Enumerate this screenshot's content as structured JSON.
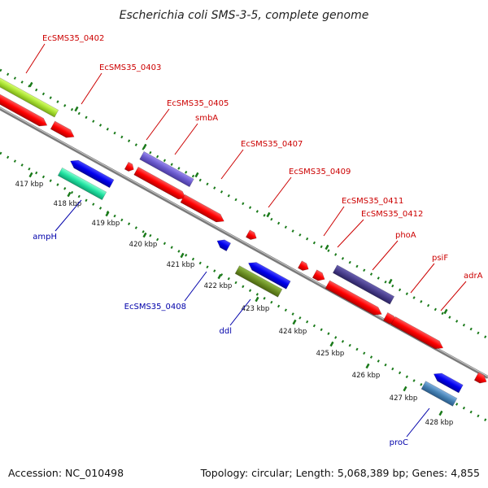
{
  "title": "Escherichia coli SMS-3-5, complete genome",
  "footer": {
    "accession": "Accession: NC_010498",
    "topology": "Topology: circular; Length: 5,068,389 bp; Genes: 4,855"
  },
  "colors": {
    "backbone": "#8a8a8a",
    "tick": "#1a7a1a",
    "label_plus": "#cc0000",
    "label_minus": "#0000aa",
    "cds": "#ff0000",
    "blue_feature": "#1010ee",
    "lime_feature": "#a8e030",
    "purple_feature": "#6a5acd",
    "darkpurple_feature": "#483d8b",
    "olive_feature": "#6b8e23",
    "teal_feature": "#20e0a0",
    "steel_feature": "#4682b4"
  },
  "ticks": [
    "417 kbp",
    "418 kbp",
    "419 kbp",
    "420 kbp",
    "421 kbp",
    "422 kbp",
    "423 kbp",
    "424 kbp",
    "425 kbp",
    "426 kbp",
    "427 kbp",
    "428 kbp"
  ],
  "labels_plus": [
    "EcSMS35_0402",
    "EcSMS35_0403",
    "EcSMS35_0405",
    "smbA",
    "EcSMS35_0407",
    "EcSMS35_0409",
    "EcSMS35_0411",
    "EcSMS35_0412",
    "phoA",
    "psiF",
    "adrA"
  ],
  "labels_minus": [
    "ampH",
    "EcSMS35_0408",
    "ddl",
    "proC"
  ]
}
